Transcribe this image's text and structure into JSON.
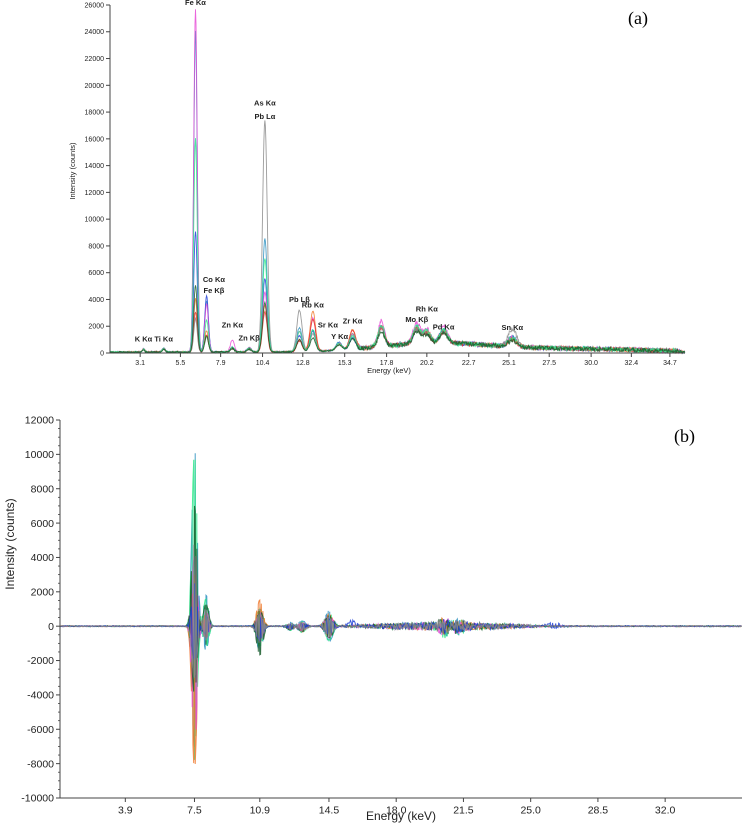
{
  "chart_data": [
    {
      "type": "line",
      "panel_label": "(a)",
      "xlabel": "Energy (keV)",
      "ylabel": "Intensity (counts)",
      "xlim": [
        1.3,
        35.6
      ],
      "ylim": [
        0,
        26000
      ],
      "xticks": [
        "3.1",
        "5.5",
        "7.9",
        "10.4",
        "12.8",
        "15.3",
        "17.8",
        "20.2",
        "22.7",
        "25.1",
        "27.5",
        "30.0",
        "32.4",
        "34.7"
      ],
      "xtick_values": [
        3.1,
        5.5,
        7.9,
        10.4,
        12.8,
        15.3,
        17.8,
        20.2,
        22.7,
        25.1,
        27.5,
        30.0,
        32.4,
        34.7
      ],
      "yticks": [
        0,
        2000,
        4000,
        6000,
        8000,
        10000,
        12000,
        14000,
        16000,
        18000,
        20000,
        22000,
        24000,
        26000
      ],
      "grid": false,
      "series": [
        {
          "color": "#2a8fbf",
          "peaks": [
            [
              3.3,
              250
            ],
            [
              4.5,
              300
            ],
            [
              6.4,
              24000
            ],
            [
              7.06,
              3800
            ],
            [
              8.6,
              350
            ],
            [
              9.6,
              300
            ],
            [
              10.54,
              8500
            ],
            [
              12.6,
              1800
            ],
            [
              13.4,
              1600
            ],
            [
              14.96,
              600
            ],
            [
              15.77,
              900
            ],
            [
              17.48,
              1500
            ],
            [
              19.6,
              1250
            ],
            [
              20.2,
              900
            ],
            [
              21.2,
              1000
            ],
            [
              25.3,
              700
            ]
          ]
        },
        {
          "color": "#1f3fd6",
          "peaks": [
            [
              3.3,
              200
            ],
            [
              4.5,
              250
            ],
            [
              6.4,
              9000
            ],
            [
              7.06,
              4200
            ],
            [
              8.6,
              300
            ],
            [
              9.6,
              250
            ],
            [
              10.54,
              5500
            ],
            [
              12.6,
              1200
            ],
            [
              13.4,
              1500
            ],
            [
              14.96,
              500
            ],
            [
              15.77,
              800
            ],
            [
              17.48,
              1500
            ],
            [
              19.6,
              1100
            ],
            [
              20.2,
              750
            ],
            [
              21.2,
              900
            ],
            [
              25.3,
              600
            ]
          ]
        },
        {
          "color": "#e64bd6",
          "peaks": [
            [
              3.3,
              250
            ],
            [
              4.5,
              300
            ],
            [
              6.4,
              25600
            ],
            [
              7.06,
              3600
            ],
            [
              8.6,
              900
            ],
            [
              9.6,
              350
            ],
            [
              10.54,
              4500
            ],
            [
              12.6,
              1500
            ],
            [
              13.4,
              2500
            ],
            [
              14.96,
              500
            ],
            [
              15.77,
              1100
            ],
            [
              17.48,
              1900
            ],
            [
              19.6,
              1550
            ],
            [
              20.2,
              1050
            ],
            [
              21.2,
              1200
            ],
            [
              25.3,
              700
            ]
          ]
        },
        {
          "color": "#f0782a",
          "peaks": [
            [
              3.3,
              200
            ],
            [
              4.5,
              250
            ],
            [
              6.4,
              4000
            ],
            [
              7.06,
              1600
            ],
            [
              8.6,
              300
            ],
            [
              9.6,
              250
            ],
            [
              10.54,
              3500
            ],
            [
              12.6,
              900
            ],
            [
              13.4,
              3000
            ],
            [
              14.96,
              450
            ],
            [
              15.77,
              1500
            ],
            [
              17.48,
              1500
            ],
            [
              19.6,
              1200
            ],
            [
              20.2,
              800
            ],
            [
              21.2,
              900
            ],
            [
              25.3,
              550
            ]
          ]
        },
        {
          "color": "#e83030",
          "peaks": [
            [
              3.3,
              200
            ],
            [
              4.5,
              250
            ],
            [
              6.4,
              3000
            ],
            [
              7.06,
              1300
            ],
            [
              8.6,
              250
            ],
            [
              9.6,
              250
            ],
            [
              10.54,
              3000
            ],
            [
              12.6,
              800
            ],
            [
              13.4,
              2400
            ],
            [
              14.96,
              450
            ],
            [
              15.77,
              1400
            ],
            [
              17.48,
              1400
            ],
            [
              19.6,
              1100
            ],
            [
              20.2,
              700
            ],
            [
              21.2,
              800
            ],
            [
              25.3,
              500
            ]
          ]
        },
        {
          "color": "#8a8a8a",
          "peaks": [
            [
              3.3,
              200
            ],
            [
              4.5,
              250
            ],
            [
              6.4,
              2500
            ],
            [
              7.06,
              1100
            ],
            [
              8.6,
              250
            ],
            [
              9.6,
              250
            ],
            [
              10.54,
              17300
            ],
            [
              12.6,
              3100
            ],
            [
              13.4,
              1300
            ],
            [
              14.96,
              450
            ],
            [
              15.77,
              1200
            ],
            [
              17.48,
              1400
            ],
            [
              19.6,
              1100
            ],
            [
              20.2,
              700
            ],
            [
              21.2,
              800
            ],
            [
              25.3,
              1300
            ]
          ]
        },
        {
          "color": "#2ee88a",
          "peaks": [
            [
              3.3,
              200
            ],
            [
              4.5,
              250
            ],
            [
              6.4,
              16000
            ],
            [
              7.06,
              2400
            ],
            [
              8.6,
              350
            ],
            [
              9.6,
              300
            ],
            [
              10.54,
              7000
            ],
            [
              12.6,
              1500
            ],
            [
              13.4,
              1600
            ],
            [
              14.96,
              500
            ],
            [
              15.77,
              1000
            ],
            [
              17.48,
              1600
            ],
            [
              19.6,
              1300
            ],
            [
              20.2,
              900
            ],
            [
              21.2,
              1000
            ],
            [
              25.3,
              650
            ]
          ]
        },
        {
          "color": "#1a5c2a",
          "peaks": [
            [
              3.3,
              150
            ],
            [
              4.5,
              200
            ],
            [
              6.4,
              5000
            ],
            [
              7.06,
              1200
            ],
            [
              8.6,
              250
            ],
            [
              9.6,
              200
            ],
            [
              10.54,
              3700
            ],
            [
              12.6,
              900
            ],
            [
              13.4,
              1000
            ],
            [
              14.96,
              400
            ],
            [
              15.77,
              800
            ],
            [
              17.48,
              1100
            ],
            [
              19.6,
              900
            ],
            [
              20.2,
              600
            ],
            [
              21.2,
              700
            ],
            [
              25.3,
              450
            ]
          ]
        }
      ],
      "annotations": [
        {
          "text": "Fe Kα",
          "x": 6.4,
          "y": 26000
        },
        {
          "text": "As Kα",
          "x": 10.54,
          "y": 18500
        },
        {
          "text": "Pb Lα",
          "x": 10.54,
          "y": 17500
        },
        {
          "text": "Co Kα",
          "x": 7.5,
          "y": 5300
        },
        {
          "text": "Fe Kβ",
          "x": 7.5,
          "y": 4500
        },
        {
          "text": "Pb Lβ",
          "x": 12.6,
          "y": 3800
        },
        {
          "text": "Rb Kα",
          "x": 13.4,
          "y": 3400
        },
        {
          "text": "Zr Kα",
          "x": 15.77,
          "y": 2200
        },
        {
          "text": "Sr Kα",
          "x": 14.3,
          "y": 1900
        },
        {
          "text": "Y Kα",
          "x": 15.0,
          "y": 1050
        },
        {
          "text": "Zn Kα",
          "x": 8.6,
          "y": 1900
        },
        {
          "text": "Zn Kβ",
          "x": 9.6,
          "y": 950
        },
        {
          "text": "K Kα",
          "x": 3.3,
          "y": 850
        },
        {
          "text": "Ti Kα",
          "x": 4.5,
          "y": 850
        },
        {
          "text": "Mo Kβ",
          "x": 19.6,
          "y": 2300
        },
        {
          "text": "Rh Kα",
          "x": 20.2,
          "y": 3100
        },
        {
          "text": "Pd Kα",
          "x": 21.2,
          "y": 1750
        },
        {
          "text": "Sn Kα",
          "x": 25.3,
          "y": 1700
        }
      ]
    },
    {
      "type": "line",
      "panel_label": "(b)",
      "xlabel": "Energy (keV)",
      "ylabel": "Intensity (counts)",
      "xlim": [
        0.5,
        36.0
      ],
      "ylim": [
        -10000,
        12000
      ],
      "xticks": [
        "3.9",
        "7.5",
        "10.9",
        "14.5",
        "18.0",
        "21.5",
        "25.0",
        "28.5",
        "32.0"
      ],
      "xtick_values": [
        3.9,
        7.5,
        10.9,
        14.5,
        18.0,
        21.5,
        25.0,
        28.5,
        32.0
      ],
      "yticks": [
        -10000,
        -8000,
        -6000,
        -4000,
        -2000,
        0,
        2000,
        4000,
        6000,
        8000,
        10000,
        12000
      ],
      "grid": false,
      "series": [
        {
          "color": "#2a8fbf",
          "peaks": [
            [
              7.5,
              10600,
              -7000
            ],
            [
              8.1,
              1800,
              -1400
            ],
            [
              10.9,
              1000,
              -1500
            ],
            [
              12.5,
              200,
              -300
            ],
            [
              13.1,
              300,
              -400
            ],
            [
              14.5,
              900,
              -900
            ],
            [
              20.5,
              300,
              -400
            ],
            [
              21.3,
              250,
              -300
            ]
          ]
        },
        {
          "color": "#2ee88a",
          "peaks": [
            [
              7.5,
              10200,
              -7800
            ],
            [
              8.1,
              1600,
              -1200
            ],
            [
              10.9,
              1100,
              -1200
            ],
            [
              12.5,
              150,
              -250
            ],
            [
              13.1,
              250,
              -350
            ],
            [
              14.5,
              800,
              -800
            ],
            [
              20.5,
              350,
              -450
            ],
            [
              21.3,
              280,
              -350
            ]
          ]
        },
        {
          "color": "#f0782a",
          "peaks": [
            [
              7.5,
              3000,
              -8400
            ],
            [
              8.1,
              800,
              -600
            ],
            [
              10.9,
              1500,
              -900
            ],
            [
              12.5,
              100,
              -150
            ],
            [
              13.1,
              200,
              -300
            ],
            [
              14.5,
              700,
              -600
            ],
            [
              20.5,
              250,
              -300
            ],
            [
              21.3,
              200,
              -250
            ]
          ]
        },
        {
          "color": "#e64bd6",
          "peaks": [
            [
              7.5,
              4000,
              -7300
            ],
            [
              8.1,
              900,
              -700
            ],
            [
              10.9,
              800,
              -900
            ],
            [
              12.5,
              120,
              -200
            ],
            [
              13.1,
              220,
              -300
            ],
            [
              14.5,
              600,
              -650
            ],
            [
              20.5,
              280,
              -350
            ],
            [
              21.3,
              220,
              -280
            ]
          ]
        },
        {
          "color": "#1a5c2a",
          "peaks": [
            [
              7.5,
              7000,
              -4000
            ],
            [
              8.1,
              1300,
              -1100
            ],
            [
              10.9,
              900,
              -1700
            ],
            [
              12.5,
              100,
              -200
            ],
            [
              13.1,
              200,
              -300
            ],
            [
              14.5,
              600,
              -700
            ],
            [
              20.5,
              250,
              -300
            ],
            [
              21.3,
              200,
              -250
            ]
          ]
        },
        {
          "color": "#1f3fd6",
          "peaks": [
            [
              7.5,
              2500,
              -2000
            ],
            [
              8.1,
              600,
              -500
            ],
            [
              10.9,
              500,
              -800
            ],
            [
              12.5,
              100,
              -150
            ],
            [
              13.1,
              150,
              -200
            ],
            [
              14.5,
              400,
              -500
            ],
            [
              20.5,
              200,
              -250
            ],
            [
              21.3,
              150,
              -200
            ],
            [
              15.7,
              300,
              -100
            ],
            [
              26.2,
              200,
              -100
            ]
          ]
        },
        {
          "color": "#8a8a8a",
          "peaks": [
            [
              7.5,
              5000,
              -3000
            ],
            [
              8.1,
              1000,
              -800
            ],
            [
              10.9,
              700,
              -1000
            ],
            [
              12.5,
              150,
              -200
            ],
            [
              13.1,
              200,
              -250
            ],
            [
              14.5,
              500,
              -600
            ],
            [
              20.5,
              250,
              -300
            ],
            [
              21.3,
              200,
              -250
            ]
          ]
        }
      ]
    }
  ]
}
